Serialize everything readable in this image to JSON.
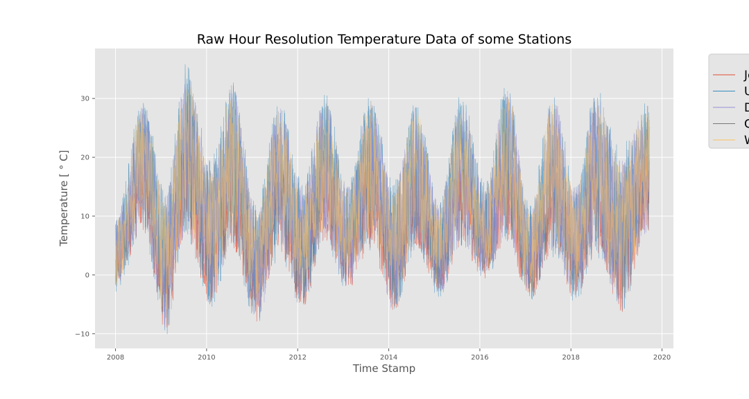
{
  "chart_data": {
    "type": "line",
    "title": "Raw Hour Resolution Temperature Data of some Stations",
    "xlabel": "Time Stamp",
    "ylabel": "Temperature [ ° C]",
    "xlim": [
      2007.55,
      2020.25
    ],
    "ylim": [
      -12.5,
      38.5
    ],
    "xticks": [
      "2008",
      "2010",
      "2012",
      "2014",
      "2016",
      "2018",
      "2020"
    ],
    "yticks": [
      "−10",
      "0",
      "10",
      "20",
      "30"
    ],
    "grid": true,
    "legend_position": "upper right, outside plot area (cropped)",
    "series": [
      {
        "name": "Jo",
        "color": "#E24A33"
      },
      {
        "name": "U",
        "color": "#348ABD"
      },
      {
        "name": "D",
        "color": "#988ED5"
      },
      {
        "name": "C",
        "color": "#777777"
      },
      {
        "name": "W",
        "color": "#FBC15E"
      }
    ],
    "seasonal_profile": {
      "x": [
        2008.0,
        2008.6,
        2009.1,
        2009.55,
        2010.1,
        2010.55,
        2011.1,
        2011.6,
        2012.1,
        2012.6,
        2013.1,
        2013.6,
        2014.1,
        2014.6,
        2015.1,
        2015.6,
        2016.1,
        2016.6,
        2017.1,
        2017.6,
        2018.1,
        2018.55,
        2019.1,
        2019.65
      ],
      "min": [
        -3,
        7,
        -10.5,
        6,
        -6,
        4,
        -8.5,
        3,
        -6,
        5,
        -3,
        4,
        -7,
        4,
        -4,
        4,
        -1,
        5,
        -5,
        3,
        -5,
        3,
        -7,
        6
      ],
      "max": [
        10,
        30,
        15,
        36,
        20,
        34,
        12,
        30,
        16,
        31,
        16,
        31,
        16,
        30,
        13,
        31,
        16,
        33,
        12,
        32,
        16,
        32,
        22,
        30
      ]
    }
  }
}
